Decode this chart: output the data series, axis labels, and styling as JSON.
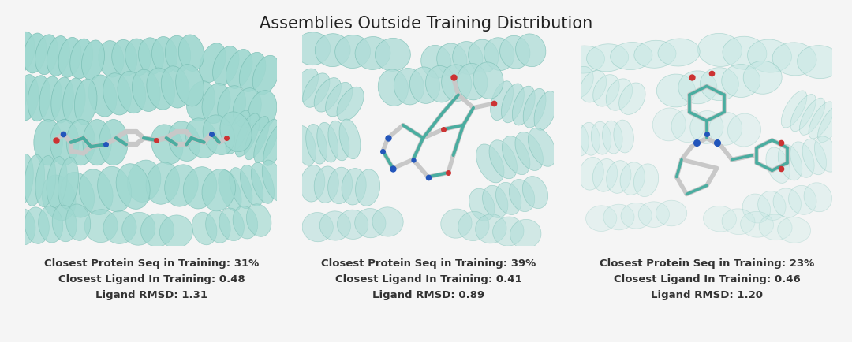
{
  "title": "Assemblies Outside Training Distribution",
  "title_fontsize": 15,
  "title_fontweight": "normal",
  "background_color": "#f5f5f5",
  "panels": [
    {
      "label_line1": "Closest Protein Seq in Training: 31%",
      "label_line2": "Closest Ligand In Training: 0.48",
      "label_line3": "Ligand RMSD: 1.31",
      "bg_color": "#c8e8e4"
    },
    {
      "label_line1": "Closest Protein Seq in Training: 39%",
      "label_line2": "Closest Ligand In Training: 0.41",
      "label_line3": "Ligand RMSD: 0.89",
      "bg_color": "#e0f4f2"
    },
    {
      "label_line1": "Closest Protein Seq in Training: 23%",
      "label_line2": "Closest Ligand In Training: 0.46",
      "label_line3": "Ligand RMSD: 1.20",
      "bg_color": "#f0fafa"
    }
  ],
  "label_fontsize": 9.5,
  "label_color": "#333333",
  "teal_ribbon": "#9fd8d0",
  "teal_ribbon_edge": "#7bbfb5",
  "teal_dark": "#3a9988",
  "teal_mol": "#4aada0",
  "gray_mol": "#c8c8c8",
  "gray_mol2": "#d8d8d8",
  "red_atom": "#cc3333",
  "blue_atom": "#2255bb",
  "border_color": "#aaaaaa"
}
